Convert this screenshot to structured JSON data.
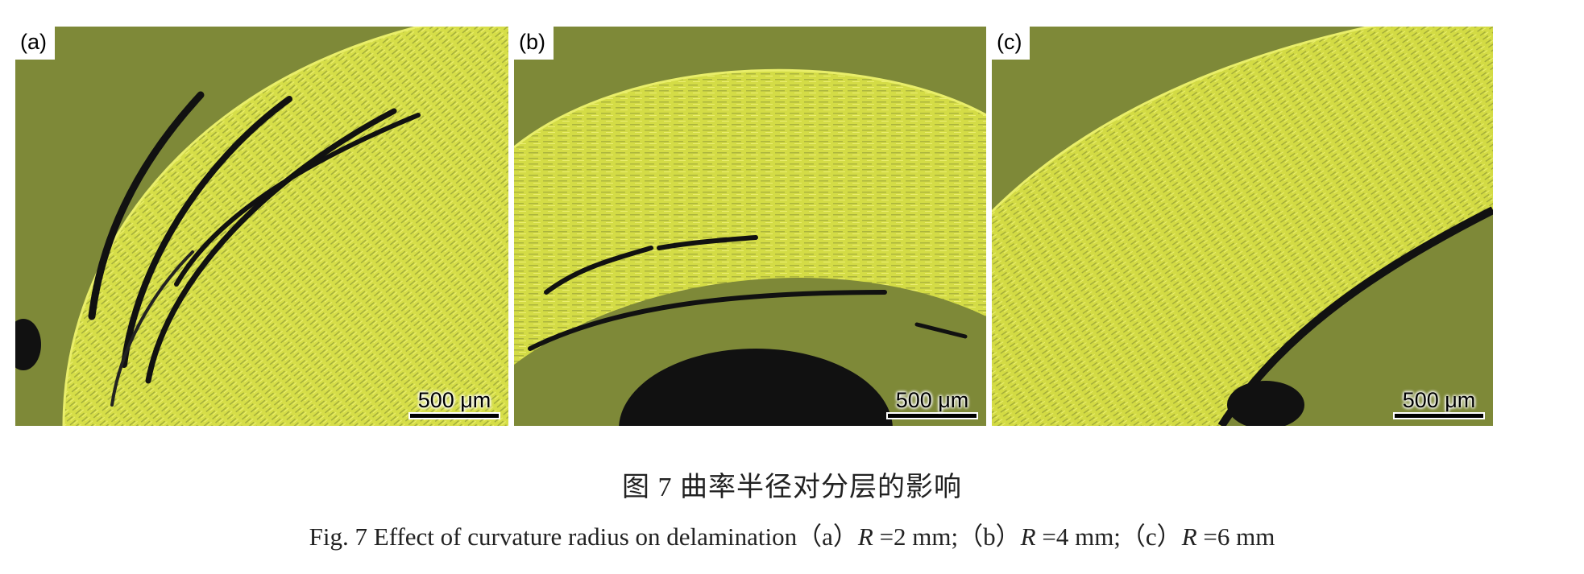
{
  "figure": {
    "panels": [
      {
        "label": "(a)",
        "scale_bar": "500 μm"
      },
      {
        "label": "(b)",
        "scale_bar": "500 μm"
      },
      {
        "label": "(c)",
        "scale_bar": "500 μm"
      }
    ],
    "caption_cn": "图 7    曲率半径对分层的影响",
    "caption_en": {
      "prefix": "Fig. 7    Effect of curvature radius on delamination（a）",
      "part_a_var": "R",
      "part_a_val": " =2 mm;（b）",
      "part_b_var": "R",
      "part_b_val": " =4 mm;（c）",
      "part_c_var": "R",
      "part_c_val": " =6 mm"
    },
    "colors": {
      "background": "#7f8a3a",
      "laminate": "#d8e04c",
      "delamination": "#111111"
    }
  }
}
